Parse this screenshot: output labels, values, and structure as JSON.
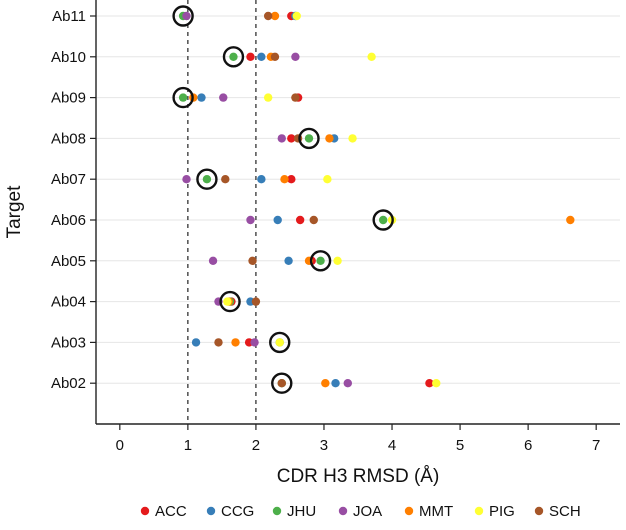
{
  "chart_data": {
    "type": "scatter",
    "title": "",
    "xlabel": "CDR H3 RMSD (Å)",
    "ylabel": "Target",
    "xlim": [
      -0.35,
      7.35
    ],
    "xticks": [
      0,
      1,
      2,
      3,
      4,
      5,
      6,
      7
    ],
    "categories": [
      "Ab11",
      "Ab10",
      "Ab09",
      "Ab08",
      "Ab07",
      "Ab06",
      "Ab05",
      "Ab04",
      "Ab03",
      "Ab02"
    ],
    "reference_lines_x": [
      1,
      2
    ],
    "grid": "horizontal",
    "legend_position": "bottom",
    "colors": {
      "ACC": "#e41a1c",
      "CCG": "#377eb8",
      "JHU": "#4daf4a",
      "JOA": "#984ea3",
      "MMT": "#ff7f00",
      "PIG": "#ffff33",
      "SCH": "#a65628"
    },
    "series": [
      {
        "name": "ACC",
        "values": [
          2.52,
          1.92,
          2.62,
          2.52,
          2.52,
          2.65,
          2.82,
          1.64,
          1.9,
          4.55
        ]
      },
      {
        "name": "CCG",
        "values": [
          2.58,
          2.08,
          1.2,
          3.15,
          2.08,
          2.32,
          2.48,
          1.92,
          1.12,
          3.17
        ]
      },
      {
        "name": "JHU",
        "values": [
          0.93,
          1.67,
          0.93,
          2.78,
          1.28,
          3.87,
          2.95,
          1.62,
          2.35,
          2.38
        ]
      },
      {
        "name": "JOA",
        "values": [
          0.98,
          2.58,
          1.52,
          2.38,
          0.98,
          1.92,
          1.37,
          1.45,
          1.98,
          3.35
        ]
      },
      {
        "name": "MMT",
        "values": [
          2.28,
          2.22,
          1.08,
          3.08,
          2.42,
          6.62,
          2.78,
          1.6,
          1.7,
          3.02
        ]
      },
      {
        "name": "PIG",
        "values": [
          2.6,
          3.7,
          2.18,
          3.42,
          3.05,
          4.0,
          3.2,
          1.58,
          2.35,
          4.65
        ]
      },
      {
        "name": "SCH",
        "values": [
          2.18,
          2.28,
          2.58,
          2.62,
          1.55,
          2.85,
          1.95,
          2.0,
          1.45,
          2.38
        ]
      }
    ],
    "highlight": {
      "series": "JHU",
      "values": [
        0.93,
        1.67,
        0.93,
        2.78,
        1.28,
        3.87,
        2.95,
        1.62,
        2.35,
        2.38
      ]
    }
  }
}
